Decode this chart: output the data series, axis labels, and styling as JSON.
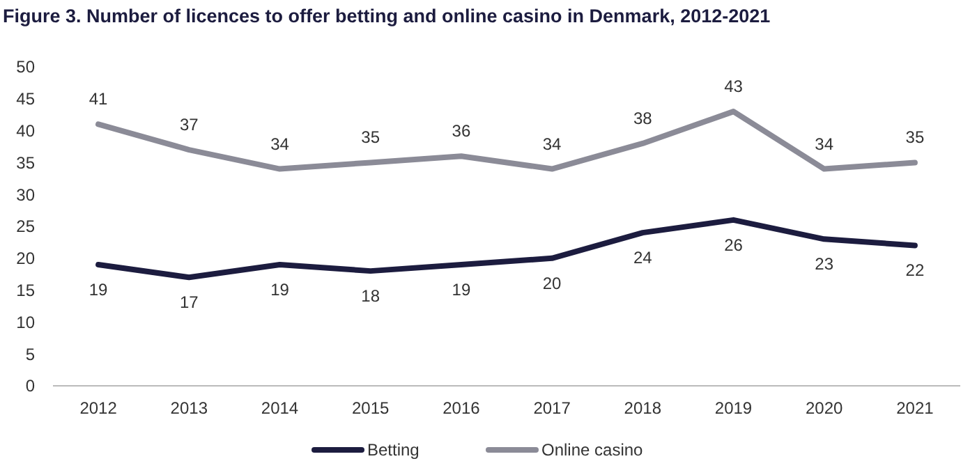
{
  "chart_data": {
    "type": "line",
    "title": "Figure 3. Number of licences to offer betting and online casino in Denmark, 2012-2021",
    "categories": [
      "2012",
      "2013",
      "2014",
      "2015",
      "2016",
      "2017",
      "2018",
      "2019",
      "2020",
      "2021"
    ],
    "series": [
      {
        "name": "Betting",
        "color": "#1c1c3f",
        "values": [
          19,
          17,
          19,
          18,
          19,
          20,
          24,
          26,
          23,
          22
        ]
      },
      {
        "name": "Online casino",
        "color": "#8b8b97",
        "values": [
          41,
          37,
          34,
          35,
          36,
          34,
          38,
          43,
          34,
          35
        ]
      }
    ],
    "ylim": [
      0,
      50
    ],
    "yticks": [
      0,
      5,
      10,
      15,
      20,
      25,
      30,
      35,
      40,
      45,
      50
    ],
    "grid": false,
    "legend": "bottom",
    "data_labels": true,
    "marker": "none",
    "line_style": "solid"
  }
}
